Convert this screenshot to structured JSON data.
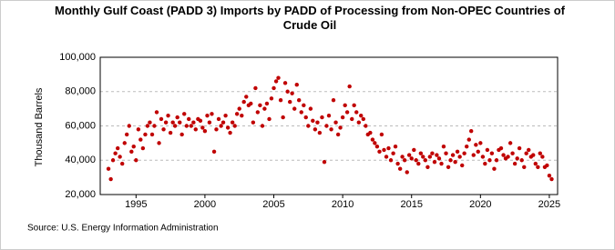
{
  "chart_data": {
    "type": "scatter",
    "title": "Monthly Gulf Coast (PADD 3) Imports by PADD of Processing from Non-OPEC Countries of Crude Oil",
    "y_label": "Thousand Barrels",
    "source": "Source: U.S. Energy Information Administration",
    "color": "#c00000",
    "grid": true,
    "xlim": [
      1992.4,
      2025.6
    ],
    "xticks": [
      1995,
      2000,
      2005,
      2010,
      2015,
      2020,
      2025
    ],
    "ylim": [
      20000,
      100000
    ],
    "yticks": [
      {
        "value": 20000,
        "label": "20,000"
      },
      {
        "value": 40000,
        "label": "40,000"
      },
      {
        "value": 60000,
        "label": "60,000"
      },
      {
        "value": 80000,
        "label": "80,000"
      },
      {
        "value": 100000,
        "label": "100,000"
      }
    ],
    "x": [
      1993,
      1993.17,
      1993.33,
      1993.5,
      1993.67,
      1993.83,
      1994,
      1994.17,
      1994.33,
      1994.5,
      1994.67,
      1994.83,
      1995,
      1995.17,
      1995.33,
      1995.5,
      1995.67,
      1995.83,
      1996,
      1996.17,
      1996.33,
      1996.5,
      1996.67,
      1996.83,
      1997,
      1997.17,
      1997.33,
      1997.5,
      1997.67,
      1997.83,
      1998,
      1998.17,
      1998.33,
      1998.5,
      1998.67,
      1998.83,
      1999,
      1999.17,
      1999.33,
      1999.5,
      1999.67,
      1999.83,
      2000,
      2000.17,
      2000.33,
      2000.5,
      2000.67,
      2000.83,
      2001,
      2001.17,
      2001.33,
      2001.5,
      2001.67,
      2001.83,
      2002,
      2002.17,
      2002.33,
      2002.5,
      2002.67,
      2002.83,
      2003,
      2003.17,
      2003.33,
      2003.5,
      2003.67,
      2003.83,
      2004,
      2004.17,
      2004.33,
      2004.5,
      2004.67,
      2004.83,
      2005,
      2005.17,
      2005.33,
      2005.5,
      2005.67,
      2005.83,
      2006,
      2006.17,
      2006.33,
      2006.5,
      2006.67,
      2006.83,
      2007,
      2007.17,
      2007.33,
      2007.5,
      2007.67,
      2007.83,
      2008,
      2008.17,
      2008.33,
      2008.5,
      2008.67,
      2008.83,
      2009,
      2009.17,
      2009.33,
      2009.5,
      2009.67,
      2009.83,
      2010,
      2010.17,
      2010.33,
      2010.5,
      2010.67,
      2010.83,
      2011,
      2011.17,
      2011.33,
      2011.5,
      2011.67,
      2011.83,
      2012,
      2012.17,
      2012.33,
      2012.5,
      2012.67,
      2012.83,
      2013,
      2013.17,
      2013.33,
      2013.5,
      2013.67,
      2013.83,
      2014,
      2014.17,
      2014.33,
      2014.5,
      2014.67,
      2014.83,
      2015,
      2015.17,
      2015.33,
      2015.5,
      2015.67,
      2015.83,
      2016,
      2016.17,
      2016.33,
      2016.5,
      2016.67,
      2016.83,
      2017,
      2017.17,
      2017.33,
      2017.5,
      2017.67,
      2017.83,
      2018,
      2018.17,
      2018.33,
      2018.5,
      2018.67,
      2018.83,
      2019,
      2019.17,
      2019.33,
      2019.5,
      2019.67,
      2019.83,
      2020,
      2020.17,
      2020.33,
      2020.5,
      2020.67,
      2020.83,
      2021,
      2021.17,
      2021.33,
      2021.5,
      2021.67,
      2021.83,
      2022,
      2022.17,
      2022.33,
      2022.5,
      2022.67,
      2022.83,
      2023,
      2023.17,
      2023.33,
      2023.5,
      2023.67,
      2023.83,
      2024,
      2024.17,
      2024.33,
      2024.5,
      2024.67,
      2024.83,
      2025,
      2025.17
    ],
    "values": [
      35000,
      29000,
      40000,
      44000,
      47000,
      42000,
      38000,
      50000,
      55000,
      60000,
      45000,
      48000,
      40000,
      58000,
      52000,
      47000,
      55000,
      60000,
      62000,
      55000,
      60000,
      68000,
      50000,
      64000,
      58000,
      62000,
      66000,
      56000,
      62000,
      60000,
      65000,
      62000,
      55000,
      67000,
      60000,
      64000,
      60000,
      62000,
      58000,
      64000,
      63000,
      59000,
      57000,
      66000,
      62000,
      67000,
      45000,
      58000,
      64000,
      60000,
      62000,
      66000,
      59000,
      56000,
      62000,
      60000,
      67000,
      70000,
      66000,
      74000,
      77000,
      72000,
      73000,
      62000,
      82000,
      68000,
      72000,
      60000,
      70000,
      73000,
      64000,
      76000,
      82000,
      86000,
      88000,
      75000,
      65000,
      85000,
      80000,
      74000,
      79000,
      70000,
      84000,
      75000,
      68000,
      72000,
      65000,
      60000,
      70000,
      63000,
      58000,
      62000,
      56000,
      65000,
      39000,
      60000,
      66000,
      58000,
      75000,
      62000,
      55000,
      59000,
      65000,
      72000,
      68000,
      83000,
      64000,
      72000,
      68000,
      62000,
      66000,
      64000,
      60000,
      55000,
      56000,
      52000,
      50000,
      48000,
      45000,
      55000,
      46000,
      42000,
      47000,
      40000,
      44000,
      48000,
      38000,
      35000,
      42000,
      40000,
      33000,
      43000,
      41000,
      46000,
      40000,
      38000,
      44000,
      42000,
      40000,
      36000,
      42000,
      44000,
      39000,
      43000,
      41000,
      38000,
      48000,
      44000,
      36000,
      40000,
      43000,
      39000,
      45000,
      42000,
      37000,
      44000,
      48000,
      52000,
      57000,
      43000,
      49000,
      45000,
      50000,
      42000,
      38000,
      46000,
      40000,
      44000,
      35000,
      40000,
      46000,
      47000,
      43000,
      41000,
      42000,
      50000,
      44000,
      38000,
      41000,
      47000,
      40000,
      36000,
      44000,
      46000,
      42000,
      43000,
      38000,
      36000,
      44000,
      42000,
      36000,
      37000,
      31000,
      29000
    ]
  }
}
